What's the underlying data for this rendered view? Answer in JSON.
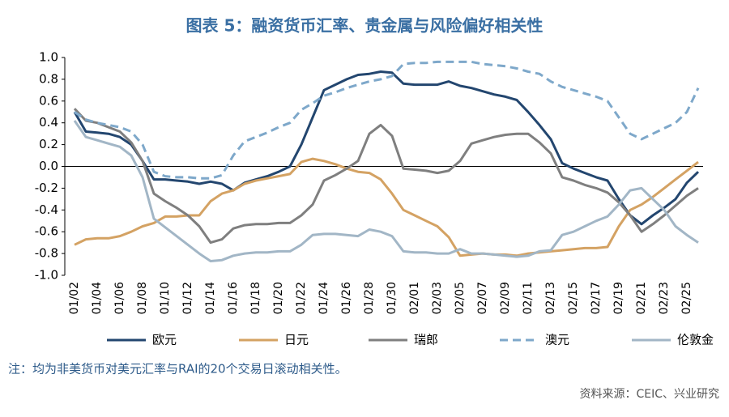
{
  "chart_data": {
    "type": "line",
    "title": "图表 5：融资货币汇率、贵金属与风险偏好相关性",
    "note": "注：均为非美货币对美元汇率与RAI的20个交易日滚动相关性。",
    "source": "资料来源：CEIC、兴业研究",
    "categories": [
      "01/02",
      null,
      "01/04",
      null,
      "01/06",
      null,
      "01/08",
      null,
      "01/10",
      null,
      "01/12",
      null,
      "01/14",
      null,
      "01/16",
      null,
      "01/18",
      null,
      "01/20",
      null,
      "01/22",
      null,
      "01/24",
      null,
      "01/26",
      null,
      "01/28",
      null,
      "01/30",
      null,
      "02/01",
      null,
      "02/03",
      null,
      "02/05",
      null,
      "02/07",
      null,
      "02/09",
      null,
      "02/11",
      null,
      "02/13",
      null,
      "02/15",
      null,
      "02/17",
      null,
      "02/19",
      null,
      "02/21",
      null,
      "02/23",
      null,
      "02/25",
      null
    ],
    "ylim": [
      -1.0,
      1.0
    ],
    "yticks": [
      {
        "value": 1.0,
        "label": "1.0"
      },
      {
        "value": 0.8,
        "label": "0.8"
      },
      {
        "value": 0.6,
        "label": "0.6"
      },
      {
        "value": 0.4,
        "label": "0.4"
      },
      {
        "value": 0.2,
        "label": "0.2"
      },
      {
        "value": 0.0,
        "label": "0.0"
      },
      {
        "value": -0.2,
        "label": "-0.2"
      },
      {
        "value": -0.4,
        "label": "-0.4"
      },
      {
        "value": -0.6,
        "label": "-0.6"
      },
      {
        "value": -0.8,
        "label": "-0.8"
      },
      {
        "value": -1.0,
        "label": "-1.0"
      }
    ],
    "grid": false,
    "series": [
      {
        "name": "欧元",
        "color": "#23466f",
        "dash": "solid",
        "values": [
          0.5,
          0.32,
          0.31,
          0.3,
          0.27,
          0.2,
          0.05,
          -0.12,
          -0.12,
          -0.13,
          -0.14,
          -0.16,
          -0.14,
          -0.16,
          -0.22,
          -0.15,
          -0.12,
          -0.09,
          -0.05,
          0,
          0.2,
          0.45,
          0.7,
          0.75,
          0.8,
          0.84,
          0.85,
          0.87,
          0.86,
          0.76,
          0.75,
          0.75,
          0.75,
          0.78,
          0.74,
          0.72,
          0.69,
          0.66,
          0.64,
          0.61,
          0.5,
          0.38,
          0.25,
          0.03,
          -0.02,
          -0.06,
          -0.1,
          -0.13,
          -0.3,
          -0.45,
          -0.53,
          -0.45,
          -0.38,
          -0.3,
          -0.15,
          -0.05
        ]
      },
      {
        "name": "日元",
        "color": "#d4a263",
        "dash": "solid",
        "values": [
          -0.72,
          -0.67,
          -0.66,
          -0.66,
          -0.64,
          -0.6,
          -0.55,
          -0.52,
          -0.46,
          -0.46,
          -0.45,
          -0.45,
          -0.32,
          -0.25,
          -0.22,
          -0.16,
          -0.13,
          -0.11,
          -0.09,
          -0.07,
          0.04,
          0.07,
          0.05,
          0.02,
          -0.02,
          -0.05,
          -0.06,
          -0.12,
          -0.25,
          -0.4,
          -0.45,
          -0.5,
          -0.55,
          -0.65,
          -0.82,
          -0.81,
          -0.8,
          -0.81,
          -0.81,
          -0.82,
          -0.8,
          -0.79,
          -0.78,
          -0.77,
          -0.76,
          -0.75,
          -0.75,
          -0.74,
          -0.55,
          -0.4,
          -0.35,
          -0.28,
          -0.2,
          -0.12,
          -0.04,
          0.04
        ]
      },
      {
        "name": "瑞郎",
        "color": "#7f7f7f",
        "dash": "solid",
        "values": [
          0.53,
          0.42,
          0.4,
          0.36,
          0.32,
          0.22,
          0.05,
          -0.25,
          -0.32,
          -0.38,
          -0.45,
          -0.55,
          -0.7,
          -0.67,
          -0.57,
          -0.54,
          -0.53,
          -0.53,
          -0.52,
          -0.52,
          -0.45,
          -0.35,
          -0.13,
          -0.08,
          -0.02,
          0.05,
          0.3,
          0.38,
          0.28,
          -0.02,
          -0.03,
          -0.04,
          -0.06,
          -0.04,
          0.05,
          0.21,
          0.24,
          0.27,
          0.29,
          0.3,
          0.3,
          0.22,
          0.12,
          -0.1,
          -0.13,
          -0.17,
          -0.2,
          -0.24,
          -0.33,
          -0.45,
          -0.6,
          -0.53,
          -0.45,
          -0.36,
          -0.27,
          -0.2
        ]
      },
      {
        "name": "澳元",
        "color": "#7ea8ca",
        "dash": "dashed",
        "values": [
          0.5,
          0.43,
          0.4,
          0.38,
          0.36,
          0.32,
          0.2,
          -0.05,
          -0.09,
          -0.1,
          -0.1,
          -0.11,
          -0.11,
          -0.08,
          0.1,
          0.23,
          0.27,
          0.31,
          0.36,
          0.4,
          0.52,
          0.58,
          0.65,
          0.68,
          0.72,
          0.75,
          0.78,
          0.8,
          0.83,
          0.94,
          0.95,
          0.95,
          0.96,
          0.96,
          0.96,
          0.96,
          0.94,
          0.93,
          0.92,
          0.9,
          0.87,
          0.85,
          0.78,
          0.73,
          0.7,
          0.67,
          0.64,
          0.6,
          0.45,
          0.3,
          0.25,
          0.3,
          0.35,
          0.4,
          0.5,
          0.72
        ]
      },
      {
        "name": "伦敦金",
        "color": "#a2b6c6",
        "dash": "solid",
        "values": [
          0.42,
          0.27,
          0.24,
          0.21,
          0.18,
          0.1,
          -0.1,
          -0.48,
          -0.56,
          -0.64,
          -0.72,
          -0.8,
          -0.87,
          -0.86,
          -0.82,
          -0.8,
          -0.79,
          -0.79,
          -0.78,
          -0.78,
          -0.72,
          -0.63,
          -0.62,
          -0.62,
          -0.63,
          -0.64,
          -0.58,
          -0.6,
          -0.64,
          -0.78,
          -0.79,
          -0.79,
          -0.8,
          -0.8,
          -0.76,
          -0.8,
          -0.8,
          -0.81,
          -0.82,
          -0.83,
          -0.82,
          -0.78,
          -0.77,
          -0.63,
          -0.6,
          -0.55,
          -0.5,
          -0.46,
          -0.35,
          -0.22,
          -0.2,
          -0.3,
          -0.4,
          -0.55,
          -0.63,
          -0.7
        ]
      }
    ]
  }
}
